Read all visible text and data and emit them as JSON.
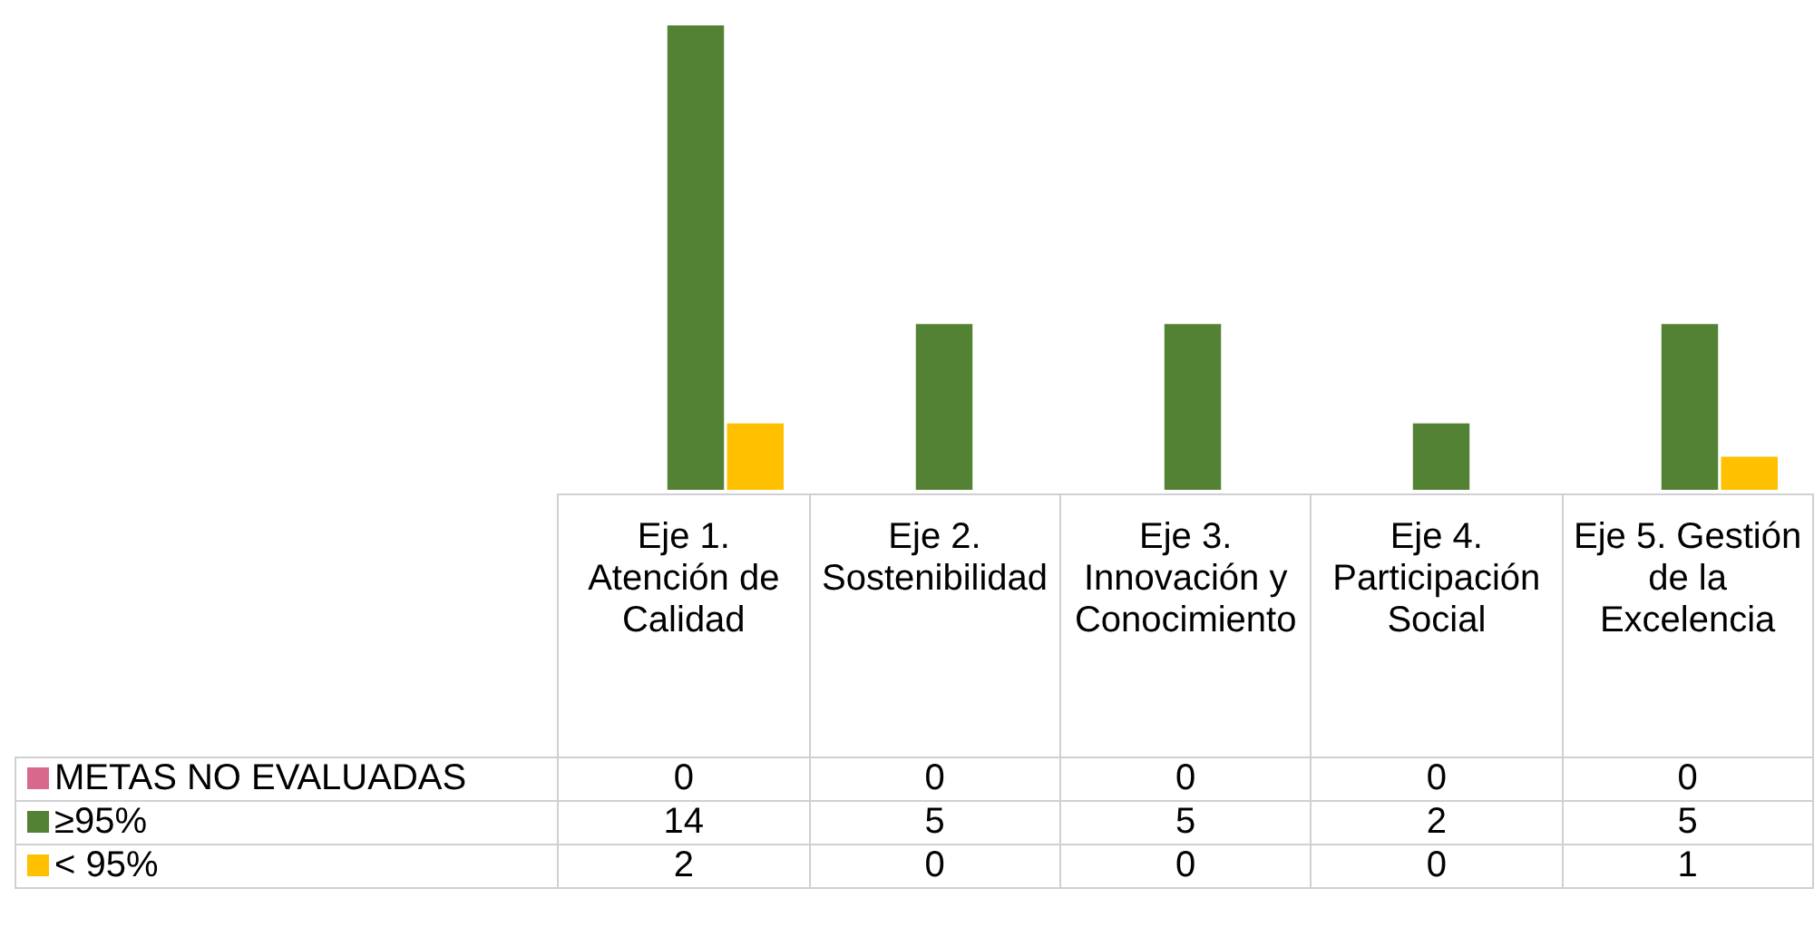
{
  "chart_data": {
    "type": "bar",
    "categories": [
      "Eje 1. Atención de Calidad",
      "Eje 2. Sostenibilidad",
      "Eje 3. Innovación y Conocimiento",
      "Eje 4. Participación Social",
      "Eje 5. Gestión de la Excelencia"
    ],
    "series": [
      {
        "name": "METAS NO EVALUADAS",
        "color": "#d9698c",
        "values": [
          0,
          0,
          0,
          0,
          0
        ]
      },
      {
        "name": "≥95%",
        "color": "#548235",
        "values": [
          14,
          5,
          5,
          2,
          5
        ]
      },
      {
        "name": "< 95%",
        "color": "#ffc000",
        "values": [
          2,
          0,
          0,
          0,
          1
        ]
      }
    ],
    "data_labels": true,
    "legend": "bottom left"
  }
}
